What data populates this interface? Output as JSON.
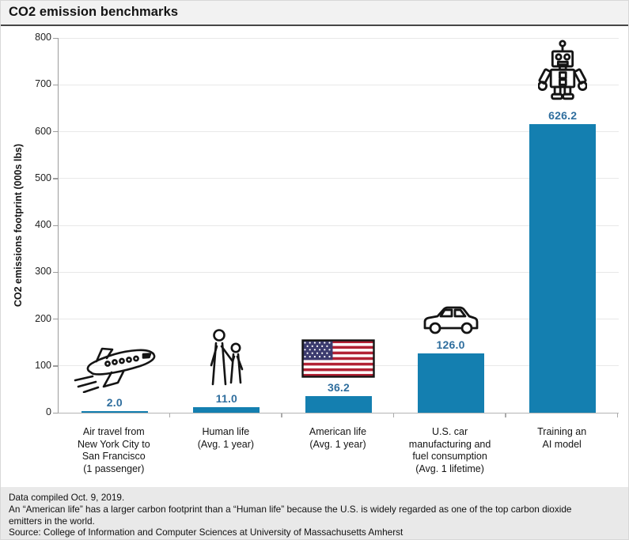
{
  "header": {
    "title": "CO2 emission benchmarks"
  },
  "chart_data": {
    "type": "bar",
    "title": "CO2 emission benchmarks",
    "categories": [
      "Air travel from\nNew York City to\nSan Francisco\n(1 passenger)",
      "Human life\n(Avg. 1 year)",
      "American life\n(Avg. 1 year)",
      "U.S. car\nmanufacturing and\nfuel consumption\n(Avg. 1 lifetime)",
      "Training an\nAI model"
    ],
    "values": [
      2.0,
      11.0,
      36.2,
      126.0,
      626.2
    ],
    "value_labels": [
      "2.0",
      "11.0",
      "36.2",
      "126.0",
      "626.2"
    ],
    "icons": [
      "airplane-icon",
      "people-icon",
      "us-flag-icon",
      "car-icon",
      "robot-icon"
    ],
    "xlabel": "",
    "ylabel": "CO2 emissions footprint (000s lbs)",
    "ylim": [
      0,
      800
    ],
    "yticks": [
      0,
      100,
      200,
      300,
      400,
      500,
      600,
      700,
      800
    ],
    "grid": "horizontal",
    "legend": "none"
  },
  "footer": {
    "lines": [
      "Data compiled Oct. 9, 2019.",
      "An “American life” has a larger carbon footprint than a “Human life” because the U.S. is widely regarded as one of the top carbon dioxide emitters in the world.",
      "Source: College of Information and Computer Sciences at University of Massachusetts Amherst"
    ]
  },
  "colors": {
    "bar": "#147FB0",
    "value_label": "#2F6E9E",
    "grid": "#E8E8E8",
    "axis": "#9C9C9C",
    "header_bg": "#F2F2F2",
    "footer_bg": "#E9E9E9",
    "flag_red": "#B22234",
    "flag_blue": "#3C3B6E"
  }
}
